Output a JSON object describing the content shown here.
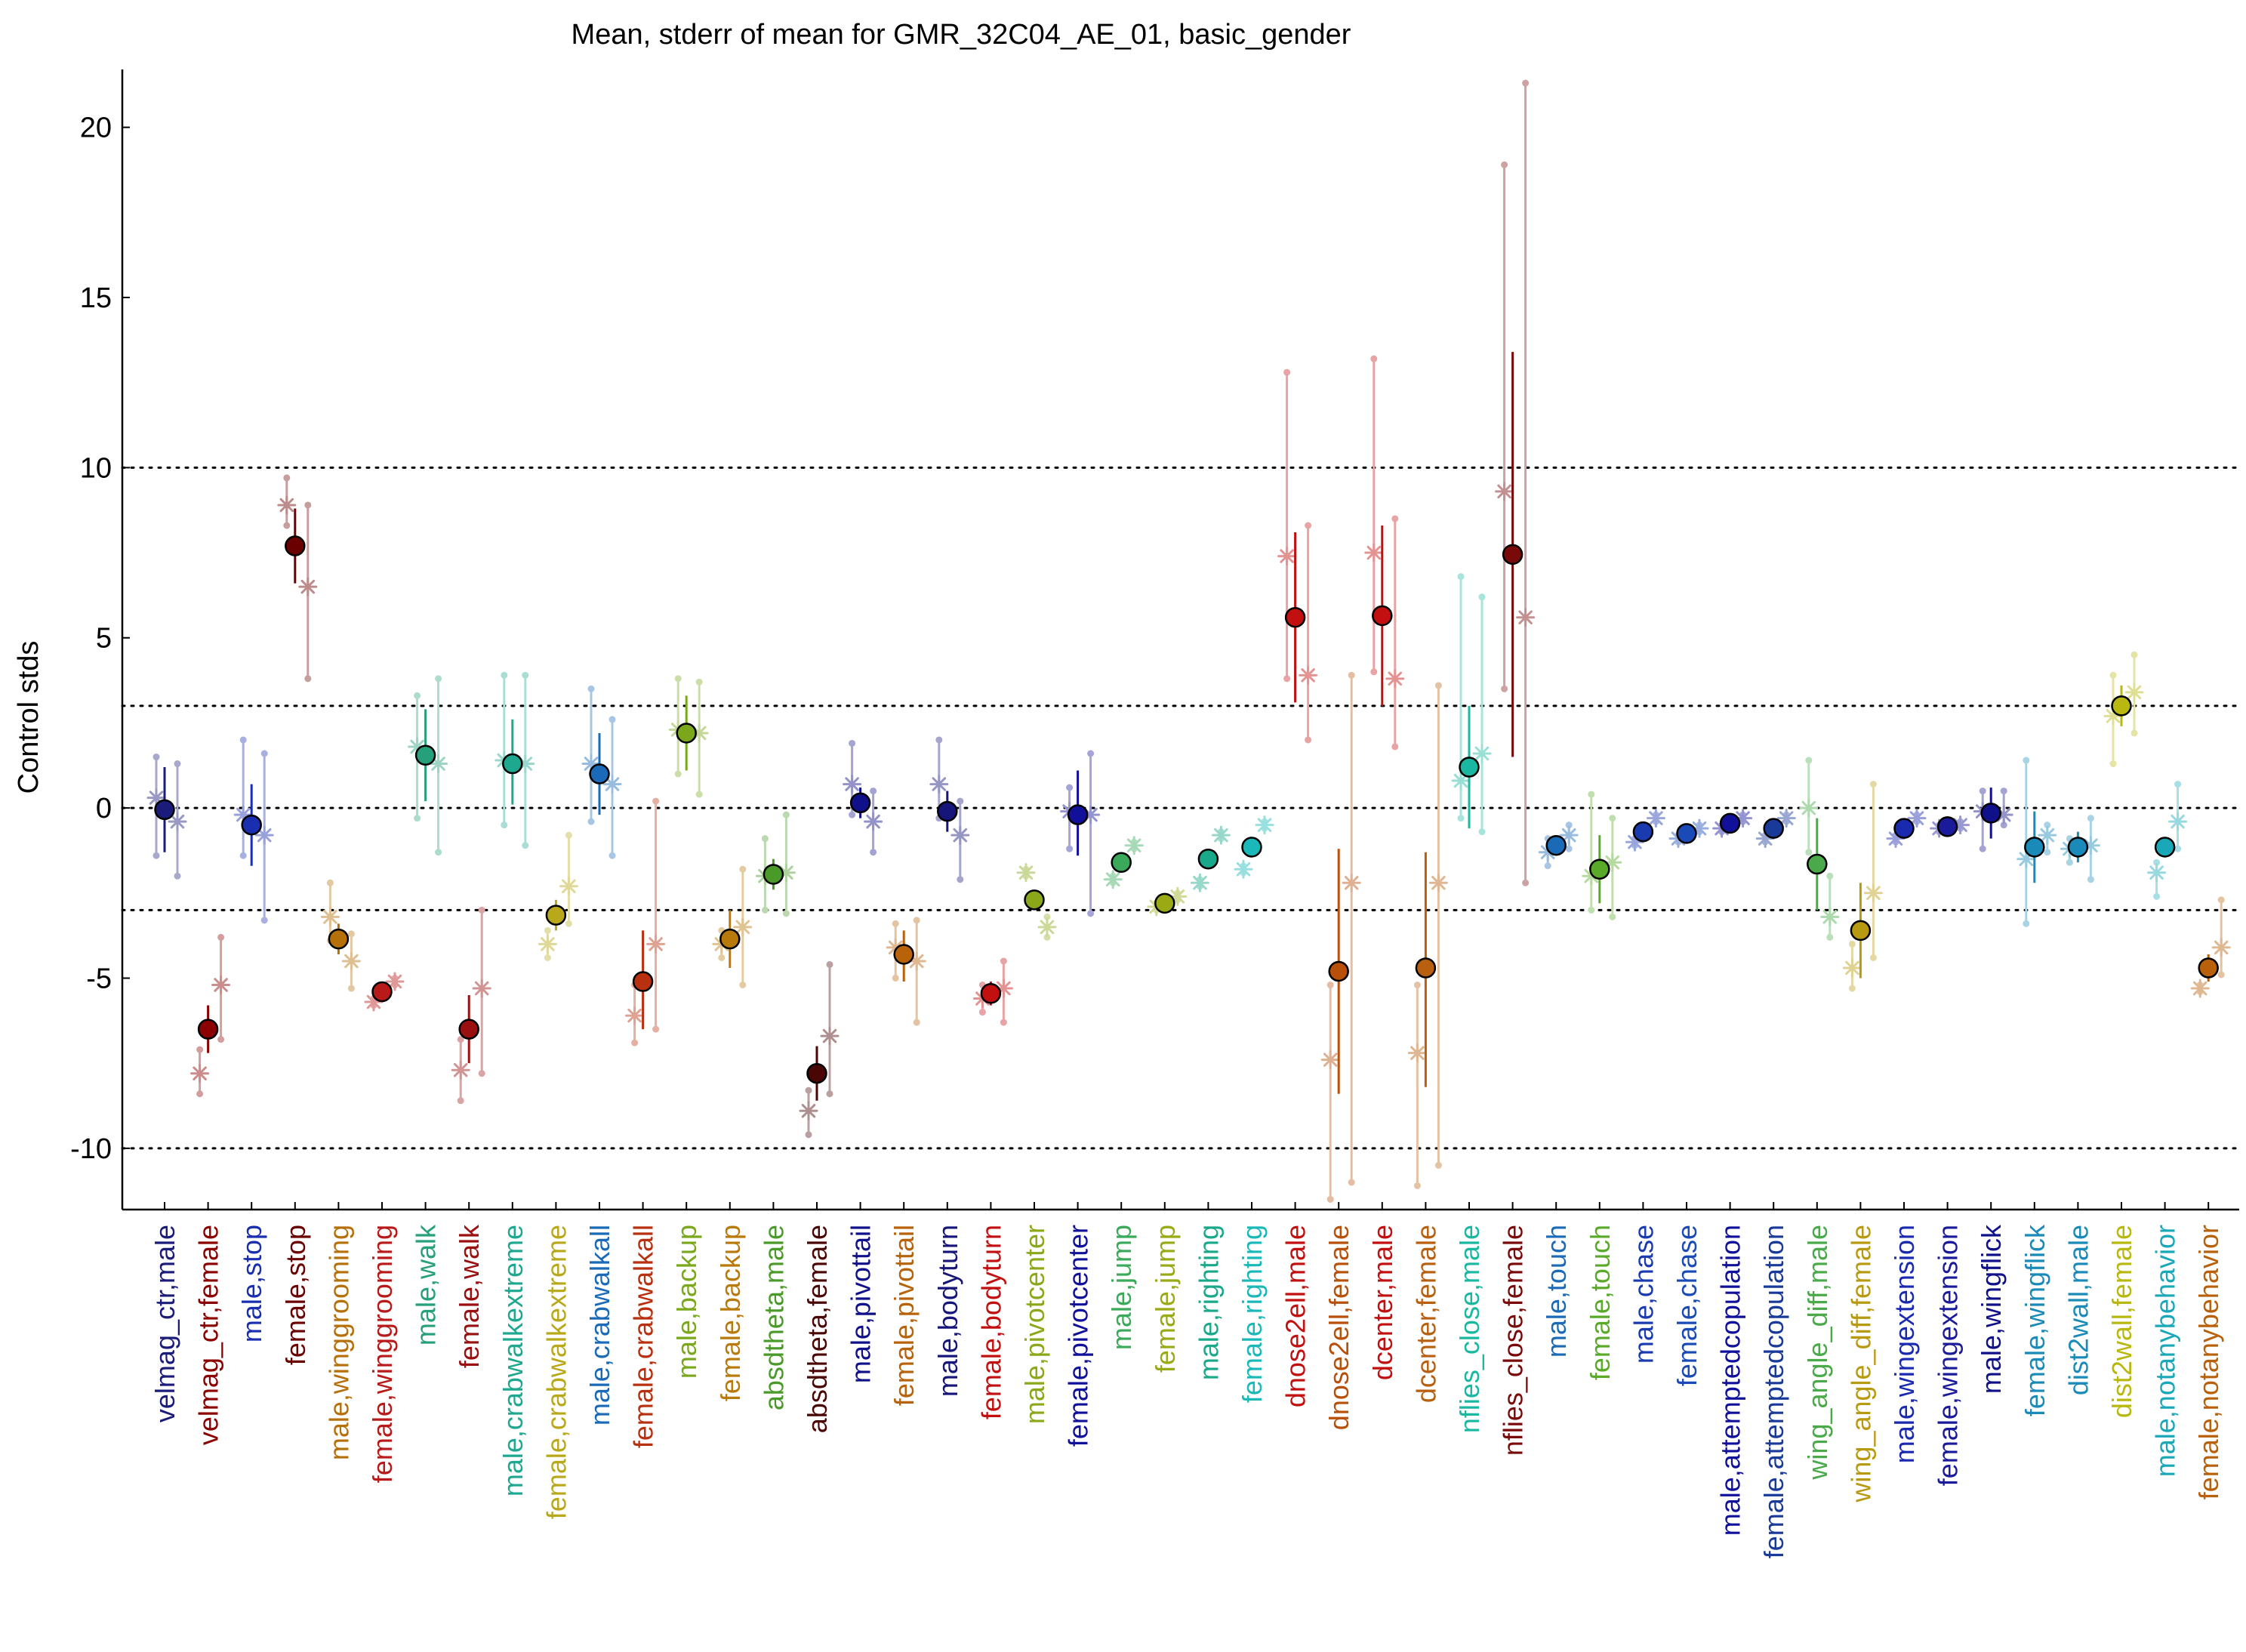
{
  "chart_data": {
    "type": "scatter",
    "title": "Mean, stderr of mean for GMR_32C04_AE_01, basic_gender",
    "ylabel": "Control stds",
    "xlabel": "",
    "ylim": [
      -11.8,
      21.7
    ],
    "yticks": [
      -10,
      -5,
      0,
      5,
      10,
      15,
      20
    ],
    "reference_lines": [
      -10,
      -3,
      0,
      3,
      10
    ],
    "grid": false,
    "legend": "none",
    "categories": [
      "velmag_ctr,male",
      "velmag_ctr,female",
      "male,stop",
      "female,stop",
      "male,winggrooming",
      "female,winggrooming",
      "male,walk",
      "female,walk",
      "male,crabwalkextreme",
      "female,crabwalkextreme",
      "male,crabwalkall",
      "female,crabwalkall",
      "male,backup",
      "female,backup",
      "absdtheta,male",
      "absdtheta,female",
      "male,pivottail",
      "female,pivottail",
      "male,bodyturn",
      "female,bodyturn",
      "male,pivotcenter",
      "female,pivotcenter",
      "male,jump",
      "female,jump",
      "male,righting",
      "female,righting",
      "dnose2ell,male",
      "dnose2ell,female",
      "dcenter,male",
      "dcenter,female",
      "nflies_close,male",
      "nflies_close,female",
      "male,touch",
      "female,touch",
      "male,chase",
      "female,chase",
      "male,attemptedcopulation",
      "female,attemptedcopulation",
      "wing_angle_diff,male",
      "wing_angle_diff,female",
      "male,wingextension",
      "female,wingextension",
      "male,wingflick",
      "female,wingflick",
      "dist2wall,male",
      "dist2wall,female",
      "male,notanybehavior",
      "female,notanybehavior"
    ],
    "colors": [
      "#1b1b7a",
      "#8b0000",
      "#1a2fb0",
      "#6b0000",
      "#b5700a",
      "#b81a1a",
      "#26a07a",
      "#9a0f0f",
      "#1fa890",
      "#b8a81a",
      "#1a6ab8",
      "#b8300f",
      "#7aa81a",
      "#b87a0a",
      "#4a9a2a",
      "#4a0505",
      "#10108a",
      "#b8620a",
      "#15157a",
      "#c21010",
      "#8aa81a",
      "#10109a",
      "#3aaa5a",
      "#9aaa15",
      "#1aa88a",
      "#1ab8b8",
      "#c21010",
      "#b8500a",
      "#c21010",
      "#b8600f",
      "#1ab8a0",
      "#7a0a0a",
      "#1a6ab8",
      "#5aaa2a",
      "#1a3ab0",
      "#1a4ab8",
      "#10109a",
      "#1a3a9a",
      "#4aaa4a",
      "#b89a10",
      "#1a2ab0",
      "#1a1a9a",
      "#10108a",
      "#1a8ab8",
      "#1a8ab8",
      "#b8b810",
      "#1aa8b8",
      "#b8600a"
    ],
    "mean": [
      -0.05,
      -6.5,
      -0.5,
      7.7,
      -3.85,
      -5.4,
      1.55,
      -6.5,
      1.3,
      -3.15,
      1.0,
      -5.1,
      2.2,
      -3.85,
      -1.95,
      -7.8,
      0.15,
      -4.3,
      -0.1,
      -5.45,
      -2.7,
      -0.2,
      -1.6,
      -2.8,
      -1.5,
      -1.15,
      5.6,
      -4.8,
      5.65,
      -4.7,
      1.2,
      7.45,
      -1.1,
      -1.8,
      -0.7,
      -0.75,
      -0.45,
      -0.6,
      -1.65,
      -3.6,
      -0.6,
      -0.55,
      -0.15,
      -1.15,
      -1.15,
      3.0,
      -1.15,
      -4.7
    ],
    "stderr_low": [
      -1.3,
      -7.2,
      -1.7,
      6.6,
      -4.3,
      -5.6,
      0.2,
      -7.5,
      0.1,
      -3.6,
      -0.2,
      -6.5,
      1.1,
      -4.7,
      -2.4,
      -8.6,
      -0.3,
      -5.1,
      -0.7,
      -5.8,
      -2.8,
      -1.4,
      -1.7,
      -2.95,
      -1.65,
      -1.3,
      3.1,
      -8.4,
      3.0,
      -8.2,
      -0.6,
      1.5,
      -1.3,
      -2.8,
      -0.9,
      -0.9,
      -0.6,
      -0.8,
      -3.0,
      -5.0,
      -0.8,
      -0.7,
      -0.9,
      -2.2,
      -1.6,
      2.4,
      -1.3,
      -5.1
    ],
    "stderr_high": [
      1.2,
      -5.8,
      0.7,
      8.8,
      -3.4,
      -5.2,
      2.9,
      -5.5,
      2.6,
      -2.7,
      2.2,
      -3.6,
      3.3,
      -3.0,
      -1.5,
      -7.0,
      0.6,
      -3.6,
      0.5,
      -5.1,
      -2.6,
      1.1,
      -1.5,
      -2.65,
      -1.35,
      -1.0,
      8.1,
      -1.2,
      8.3,
      -1.3,
      3.0,
      13.4,
      -0.9,
      -0.8,
      -0.5,
      -0.6,
      -0.3,
      -0.4,
      -0.3,
      -2.2,
      -0.4,
      -0.4,
      0.6,
      -0.1,
      -0.7,
      3.6,
      -1.0,
      -4.3
    ],
    "set1": [
      0.3,
      -7.8,
      -0.2,
      8.9,
      -3.2,
      -5.7,
      1.8,
      -7.7,
      1.4,
      -4.0,
      1.3,
      -6.1,
      2.3,
      -4.0,
      -2.0,
      -8.9,
      0.7,
      -4.1,
      0.7,
      -5.6,
      -1.9,
      -0.1,
      -2.1,
      -2.9,
      -2.2,
      -1.8,
      7.4,
      -7.4,
      7.5,
      -7.2,
      0.8,
      9.3,
      -1.3,
      -2.0,
      -1.0,
      -0.9,
      -0.6,
      -0.9,
      0.0,
      -4.7,
      -0.9,
      -0.6,
      -0.1,
      -1.5,
      -1.2,
      2.7,
      -1.9,
      -5.3
    ],
    "set1_low": [
      -1.4,
      -8.4,
      -1.4,
      8.3,
      -3.9,
      -5.8,
      -0.3,
      -8.6,
      -0.5,
      -4.4,
      -0.4,
      -6.9,
      1.0,
      -4.4,
      -3.0,
      -9.6,
      -0.2,
      -5.0,
      -0.3,
      -6.0,
      -2.0,
      -1.2,
      -2.2,
      -3.0,
      -2.3,
      -1.9,
      3.8,
      -11.5,
      4.0,
      -11.1,
      -0.3,
      3.5,
      -1.7,
      -3.0,
      -1.1,
      -1.0,
      -0.7,
      -1.0,
      -1.3,
      -5.3,
      -1.0,
      -0.7,
      -1.2,
      -3.4,
      -1.6,
      1.3,
      -2.6,
      -5.4
    ],
    "set1_high": [
      1.5,
      -7.1,
      2.0,
      9.7,
      -2.2,
      -5.6,
      3.3,
      -6.8,
      3.9,
      -3.6,
      3.5,
      -5.2,
      3.8,
      -3.6,
      -0.9,
      -8.3,
      1.9,
      -3.4,
      2.0,
      -5.2,
      -1.8,
      0.6,
      -2.0,
      -2.8,
      -2.1,
      -1.7,
      12.8,
      -5.2,
      13.2,
      -5.2,
      6.8,
      18.9,
      -0.9,
      0.4,
      -0.9,
      -0.8,
      -0.5,
      -0.8,
      1.4,
      -4.0,
      -0.8,
      -0.5,
      0.5,
      1.4,
      -0.9,
      3.9,
      -1.6,
      -5.2
    ],
    "set2": [
      -0.4,
      -5.2,
      -0.8,
      6.5,
      -4.5,
      -5.1,
      1.3,
      -5.3,
      1.3,
      -2.3,
      0.7,
      -4.0,
      2.2,
      -3.5,
      -1.9,
      -6.7,
      -0.4,
      -4.5,
      -0.8,
      -5.3,
      -3.5,
      -0.2,
      -1.1,
      -2.6,
      -0.8,
      -0.5,
      3.9,
      -2.2,
      3.8,
      -2.2,
      1.6,
      5.6,
      -0.8,
      -1.6,
      -0.3,
      -0.6,
      -0.3,
      -0.3,
      -3.2,
      -2.5,
      -0.3,
      -0.5,
      -0.2,
      -0.8,
      -1.1,
      3.4,
      -0.4,
      -4.1
    ],
    "set2_low": [
      -2.0,
      -6.8,
      -3.3,
      3.8,
      -5.3,
      -5.2,
      -1.3,
      -7.8,
      -1.1,
      -3.4,
      -1.4,
      -6.5,
      0.4,
      -5.2,
      -3.1,
      -8.4,
      -1.3,
      -6.3,
      -2.1,
      -6.3,
      -3.8,
      -3.1,
      -1.2,
      -2.7,
      -0.9,
      -0.6,
      2.0,
      -11.0,
      1.8,
      -10.5,
      -0.7,
      -2.2,
      -1.2,
      -3.2,
      -0.4,
      -0.7,
      -0.4,
      -0.4,
      -3.8,
      -4.4,
      -0.4,
      -0.6,
      -0.5,
      -1.3,
      -2.1,
      2.2,
      -1.2,
      -4.9
    ],
    "set2_high": [
      1.3,
      -3.8,
      1.6,
      8.9,
      -3.7,
      -5.0,
      3.8,
      -3.0,
      3.9,
      -0.8,
      2.6,
      0.2,
      3.7,
      -1.8,
      -0.2,
      -4.6,
      0.5,
      -3.3,
      0.2,
      -4.5,
      -3.2,
      1.6,
      -1.0,
      -2.5,
      -0.7,
      -0.4,
      8.3,
      3.9,
      8.5,
      3.6,
      6.2,
      21.3,
      -0.5,
      -0.3,
      -0.2,
      -0.5,
      -0.2,
      -0.2,
      -2.0,
      0.7,
      -0.2,
      -0.4,
      0.5,
      -0.5,
      -0.3,
      4.5,
      0.7,
      -2.7
    ]
  }
}
